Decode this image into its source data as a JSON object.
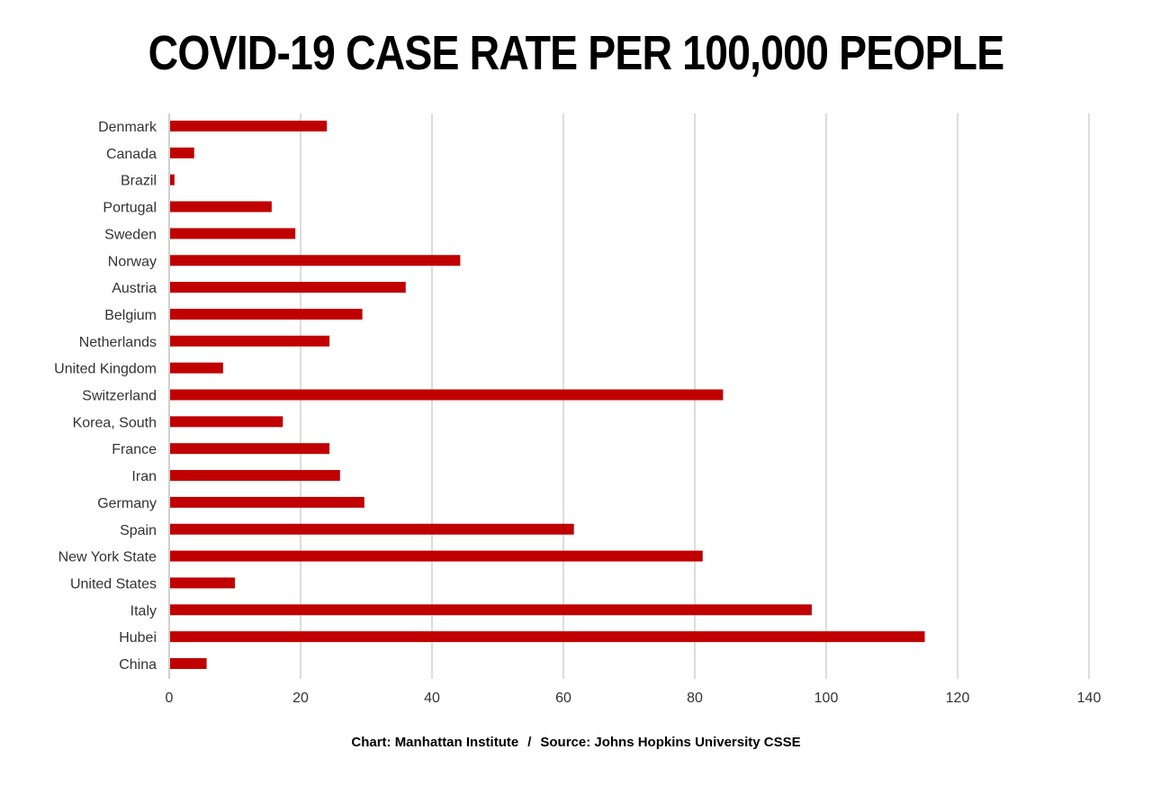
{
  "chart_data": {
    "type": "bar",
    "orientation": "horizontal",
    "title": "COVID-19 CASE RATE PER 100,000 PEOPLE",
    "categories": [
      "Denmark",
      "Canada",
      "Brazil",
      "Portugal",
      "Sweden",
      "Norway",
      "Austria",
      "Belgium",
      "Netherlands",
      "United Kingdom",
      "Switzerland",
      "Korea, South",
      "France",
      "Iran",
      "Germany",
      "Spain",
      "New York State",
      "United States",
      "Italy",
      "Hubei",
      "China"
    ],
    "values": [
      24,
      3.8,
      0.8,
      15.6,
      19.2,
      44.3,
      36,
      29.4,
      24.4,
      8.2,
      84.3,
      17.3,
      24.4,
      26,
      29.7,
      61.6,
      81.2,
      10,
      97.8,
      115,
      5.7
    ],
    "xlim": [
      0,
      140
    ],
    "xticks": [
      "0",
      "20",
      "40",
      "60",
      "80",
      "100",
      "120",
      "140"
    ],
    "grid": "vertical",
    "bar_color": "#c00000",
    "grid_color": "#d0d0d0"
  },
  "footer": {
    "chart_credit": "Chart: Manhattan Institute",
    "separator": "/",
    "source": "Source: Johns Hopkins University CSSE"
  }
}
